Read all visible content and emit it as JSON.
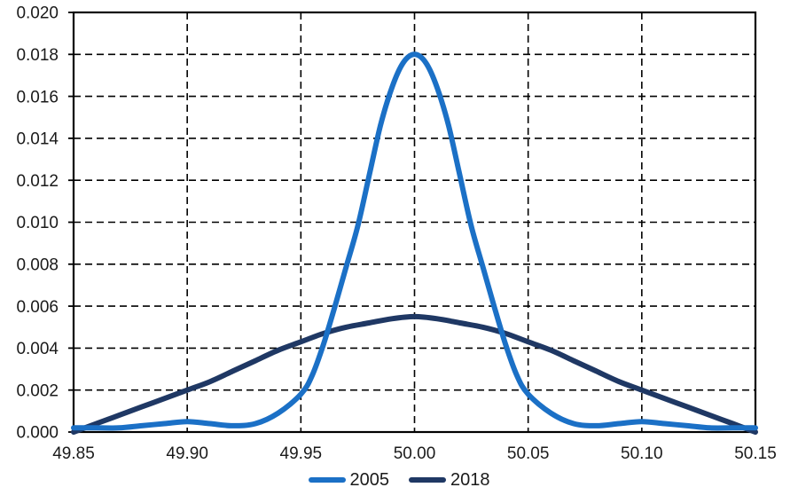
{
  "chart_data": {
    "type": "line",
    "title": "",
    "xlabel": "",
    "ylabel": "",
    "xlim": [
      49.85,
      50.15
    ],
    "ylim": [
      0.0,
      0.02
    ],
    "x_ticks": [
      "49.85",
      "49.90",
      "49.95",
      "50.00",
      "50.05",
      "50.10",
      "50.15"
    ],
    "y_ticks": [
      "0.000",
      "0.002",
      "0.004",
      "0.006",
      "0.008",
      "0.010",
      "0.012",
      "0.014",
      "0.016",
      "0.018",
      "0.020"
    ],
    "grid": "dashed",
    "grid_color": "#000000",
    "frame_color": "#000000",
    "legend_position": "bottom-center",
    "series": [
      {
        "name": "2005",
        "color": "#1B70C6",
        "points": [
          [
            49.85,
            0.0002
          ],
          [
            49.86,
            0.0002
          ],
          [
            49.87,
            0.0002
          ],
          [
            49.88,
            0.0003
          ],
          [
            49.89,
            0.0004
          ],
          [
            49.9,
            0.0005
          ],
          [
            49.91,
            0.0004
          ],
          [
            49.92,
            0.0003
          ],
          [
            49.93,
            0.0004
          ],
          [
            49.94,
            0.0009
          ],
          [
            49.95,
            0.0018
          ],
          [
            49.955,
            0.0027
          ],
          [
            49.96,
            0.0042
          ],
          [
            49.965,
            0.006
          ],
          [
            49.97,
            0.0079
          ],
          [
            49.975,
            0.0098
          ],
          [
            49.98,
            0.0122
          ],
          [
            49.985,
            0.0146
          ],
          [
            49.99,
            0.0164
          ],
          [
            49.995,
            0.0176
          ],
          [
            50.0,
            0.018
          ],
          [
            50.005,
            0.0176
          ],
          [
            50.01,
            0.0164
          ],
          [
            50.015,
            0.0146
          ],
          [
            50.02,
            0.0122
          ],
          [
            50.025,
            0.0098
          ],
          [
            50.03,
            0.0079
          ],
          [
            50.035,
            0.006
          ],
          [
            50.04,
            0.0042
          ],
          [
            50.045,
            0.0027
          ],
          [
            50.05,
            0.0018
          ],
          [
            50.06,
            0.0009
          ],
          [
            50.07,
            0.0004
          ],
          [
            50.08,
            0.0003
          ],
          [
            50.09,
            0.0004
          ],
          [
            50.1,
            0.0005
          ],
          [
            50.11,
            0.0004
          ],
          [
            50.12,
            0.0003
          ],
          [
            50.13,
            0.0002
          ],
          [
            50.14,
            0.0002
          ],
          [
            50.15,
            0.0002
          ]
        ]
      },
      {
        "name": "2018",
        "color": "#1F3864",
        "points": [
          [
            49.85,
            0.0
          ],
          [
            49.86,
            0.0004
          ],
          [
            49.87,
            0.0008
          ],
          [
            49.88,
            0.0012
          ],
          [
            49.89,
            0.0016
          ],
          [
            49.9,
            0.002
          ],
          [
            49.91,
            0.0024
          ],
          [
            49.92,
            0.0029
          ],
          [
            49.93,
            0.0034
          ],
          [
            49.94,
            0.0039
          ],
          [
            49.95,
            0.0043
          ],
          [
            49.96,
            0.0047
          ],
          [
            49.97,
            0.005
          ],
          [
            49.98,
            0.0052
          ],
          [
            49.99,
            0.0054
          ],
          [
            50.0,
            0.0055
          ],
          [
            50.01,
            0.0054
          ],
          [
            50.02,
            0.0052
          ],
          [
            50.03,
            0.005
          ],
          [
            50.04,
            0.0047
          ],
          [
            50.05,
            0.0043
          ],
          [
            50.06,
            0.0039
          ],
          [
            50.07,
            0.0034
          ],
          [
            50.08,
            0.0029
          ],
          [
            50.09,
            0.0024
          ],
          [
            50.1,
            0.002
          ],
          [
            50.11,
            0.0016
          ],
          [
            50.12,
            0.0012
          ],
          [
            50.13,
            0.0008
          ],
          [
            50.14,
            0.0004
          ],
          [
            50.15,
            0.0
          ]
        ]
      }
    ]
  }
}
